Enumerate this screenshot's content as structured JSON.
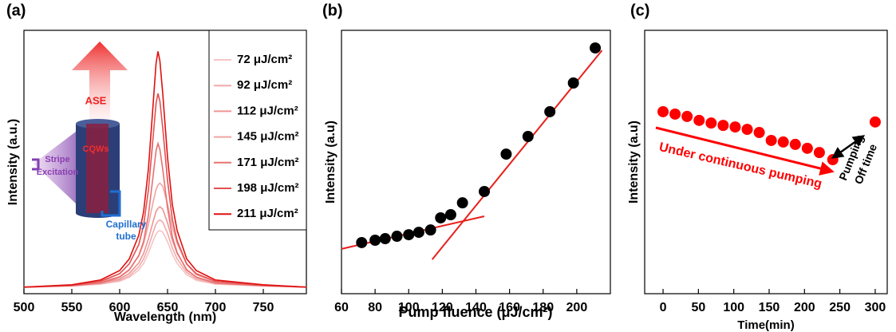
{
  "chart_data": [
    {
      "type": "line",
      "panel_label": "(a)",
      "x_label": "Wavelength (nm)",
      "y_label": "Intensity (a.u.)",
      "x": [
        500,
        550,
        580,
        600,
        610,
        620,
        625,
        630,
        635,
        638,
        640,
        642,
        645,
        650,
        655,
        660,
        670,
        680,
        700,
        750,
        795
      ],
      "xlim": [
        500,
        795
      ],
      "xticks": [
        500,
        550,
        600,
        650,
        700,
        750
      ],
      "ylim": [
        0,
        100
      ],
      "series": [
        {
          "name": "72 μJ/cm²",
          "color": "#f6c4c4",
          "values": [
            2.5,
            2.9,
            3.6,
            4.7,
            6.2,
            9.0,
            11.5,
            15.4,
            20.1,
            22.7,
            23.6,
            24,
            23.4,
            19.7,
            15,
            11.5,
            7.2,
            5.1,
            3.6,
            2.9,
            2.5
          ]
        },
        {
          "name": "92 μJ/cm²",
          "color": "#f2aaaa",
          "values": [
            2.5,
            3.0,
            3.8,
            5.1,
            6.8,
            10.2,
            13.2,
            17.8,
            23.4,
            26.5,
            27.5,
            28,
            27.2,
            22.9,
            17.3,
            13.2,
            8.1,
            5.6,
            3.8,
            3.0,
            2.5
          ]
        },
        {
          "name": "112 μJ/cm²",
          "color": "#ee9494",
          "values": [
            2.5,
            3.1,
            4.0,
            5.6,
            7.7,
            11.7,
            15.3,
            20.8,
            27.5,
            31.2,
            32.4,
            33,
            32.1,
            26.9,
            20.2,
            15.3,
            9.2,
            6.2,
            4.0,
            3.1,
            2.5
          ]
        },
        {
          "name": "145 μJ/cm²",
          "color": "#f0a4a4",
          "values": [
            2.5,
            3.3,
            4.5,
            6.5,
            9.2,
            14.4,
            19.1,
            26.2,
            34.9,
            39.6,
            41.2,
            42,
            40.8,
            34.1,
            25.4,
            19.1,
            11.2,
            7.2,
            4.5,
            3.3,
            2.5
          ]
        },
        {
          "name": "171 μJ/cm²",
          "color": "#e87070",
          "values": [
            2.5,
            3.0,
            4.1,
            6.3,
            9.0,
            14.5,
            19.9,
            29.8,
            45,
            54.3,
            57,
            54.8,
            47.2,
            32.5,
            21.6,
            15.6,
            9.0,
            6.3,
            4.1,
            3.0,
            2.5
          ]
        },
        {
          "name": "198 μJ/cm²",
          "color": "#e35050",
          "values": [
            2.5,
            3.2,
            4.7,
            7.6,
            11.3,
            18.7,
            26,
            39.3,
            59.8,
            72.3,
            76,
            73.1,
            62.8,
            42.9,
            28.2,
            20.1,
            11.3,
            7.6,
            4.7,
            3.2,
            2.5
          ]
        },
        {
          "name": "211 μJ/cm²",
          "color": "#e01010",
          "values": [
            2.5,
            3.4,
            5.2,
            8.8,
            13.2,
            22.2,
            31.1,
            47.3,
            72.3,
            87.5,
            92,
            88.4,
            75.9,
            51.7,
            33.8,
            24,
            13.2,
            8.8,
            5.2,
            3.4,
            2.5
          ]
        }
      ],
      "annotations": [
        "ASE",
        "CQWs",
        "Stripe",
        "Excitation",
        "Capillary",
        "tube"
      ]
    },
    {
      "type": "scatter",
      "panel_label": "(b)",
      "x_label": "Pump fluence (μJ/cm²)",
      "y_label": "Intensity (a.u)",
      "x": [
        72,
        80,
        86,
        93,
        100,
        106,
        113,
        119,
        125,
        132,
        145,
        158,
        171,
        184,
        198,
        211
      ],
      "values": [
        19.4,
        20.3,
        20.9,
        21.8,
        22.4,
        23.3,
        24.2,
        28.8,
        30,
        34.5,
        38.8,
        53,
        59.7,
        69.1,
        80,
        93.3
      ],
      "color": "#000000",
      "xlim": [
        60,
        220
      ],
      "xticks": [
        60,
        80,
        100,
        120,
        140,
        160,
        180,
        200
      ],
      "ylim": [
        0,
        100
      ],
      "fit_color": "#e8201c",
      "fit_lines": [
        {
          "x": [
            60,
            145
          ],
          "values": [
            17,
            29.4
          ]
        },
        {
          "x": [
            114,
            215
          ],
          "values": [
            13,
            92.4
          ]
        }
      ]
    },
    {
      "type": "scatter",
      "panel_label": "(c)",
      "x_label": "Time(min)",
      "y_label": "Intensity (a.u)",
      "x": [
        0,
        17,
        34,
        51,
        68,
        85,
        102,
        119,
        136,
        153,
        170,
        187,
        204,
        221,
        240,
        300
      ],
      "values": [
        69.1,
        68.2,
        67.3,
        65.8,
        64.8,
        63.9,
        63.3,
        62.4,
        61.2,
        58.2,
        57.6,
        56.7,
        55.2,
        53.6,
        50.9,
        65.2
      ],
      "color": "#ff0000",
      "xlim": [
        -26,
        317
      ],
      "xticks": [
        0,
        50,
        100,
        150,
        200,
        250,
        300
      ],
      "ylim": [
        0,
        100
      ],
      "annotations": [
        "Under continuous pumping",
        "Pumping",
        "Off time"
      ]
    }
  ]
}
